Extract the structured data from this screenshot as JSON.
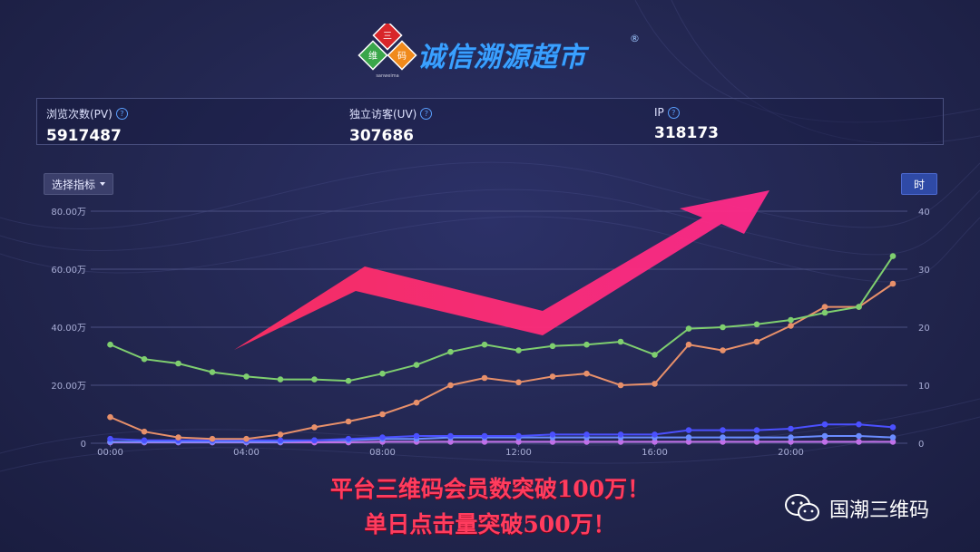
{
  "brand": {
    "logo_chars": [
      "三",
      "维",
      "码"
    ],
    "logo_sub": "sanweima",
    "name": "诚信溯源超市",
    "registered_mark": "®"
  },
  "stats": [
    {
      "label": "浏览次数(PV)",
      "value": "5917487"
    },
    {
      "label": "独立访客(UV)",
      "value": "307686"
    },
    {
      "label": "IP",
      "value": "318173"
    }
  ],
  "controls": {
    "metric_select_label": "选择指标",
    "hour_button_label": "时"
  },
  "chart_data": {
    "type": "line",
    "x_tick_labels": [
      "00:00",
      "04:00",
      "08:00",
      "12:00",
      "16:00",
      "20:00"
    ],
    "y_left_ticks": [
      "80.00万",
      "60.00万",
      "40.00万",
      "20.00万",
      "0"
    ],
    "y_right_ticks": [
      "40",
      "30",
      "20",
      "10",
      "0"
    ],
    "ylim_left": [
      0,
      80
    ],
    "ylim_right": [
      0,
      40
    ],
    "hours": [
      0,
      1,
      2,
      3,
      4,
      5,
      6,
      7,
      8,
      9,
      10,
      11,
      12,
      13,
      14,
      15,
      16,
      17,
      18,
      19,
      20,
      21,
      22,
      23
    ],
    "series": [
      {
        "color": "#7fcf6f",
        "axis": "left",
        "values": [
          34,
          29,
          27.5,
          24.5,
          23,
          22,
          22,
          21.5,
          24,
          27,
          31.5,
          34,
          32,
          33.5,
          34,
          35,
          30.5,
          39.5,
          40,
          41,
          42.5,
          45,
          47,
          64.5
        ]
      },
      {
        "color": "#e8906a",
        "axis": "left",
        "values": [
          9,
          4,
          2,
          1.5,
          1.5,
          3,
          5.5,
          7.5,
          10,
          14,
          20,
          22.5,
          21,
          23,
          24,
          20,
          20.5,
          34,
          32,
          35,
          40.5,
          47,
          47,
          55
        ]
      },
      {
        "color": "#4b50ff",
        "axis": "left",
        "values": [
          1.5,
          1,
          1,
          1,
          1,
          1,
          1,
          1.5,
          2,
          2.5,
          2.5,
          2.5,
          2.5,
          3,
          3,
          3,
          3,
          4.5,
          4.5,
          4.5,
          5,
          6.5,
          6.5,
          5.5
        ]
      },
      {
        "color": "#6a8cff",
        "axis": "left",
        "values": [
          0.5,
          0.5,
          0.5,
          0.5,
          0.5,
          0.5,
          1,
          1,
          1.5,
          1.5,
          2,
          2,
          2,
          2,
          2,
          2,
          2,
          2,
          2,
          2,
          2,
          2.5,
          2.5,
          2
        ]
      },
      {
        "color": "#c070e8",
        "axis": "left",
        "values": [
          0.3,
          0.3,
          0.3,
          0.3,
          0.3,
          0.3,
          0.3,
          0.3,
          0.5,
          0.5,
          0.5,
          0.5,
          0.5,
          0.5,
          0.5,
          0.5,
          0.5,
          0.5,
          0.5,
          0.5,
          0.5,
          0.5,
          0.5,
          0.5
        ]
      }
    ]
  },
  "headline": {
    "line1": "平台三维码会员数突破100万！",
    "line2": "单日点击量突破500万！"
  },
  "wechat": {
    "account": "国潮三维码"
  }
}
